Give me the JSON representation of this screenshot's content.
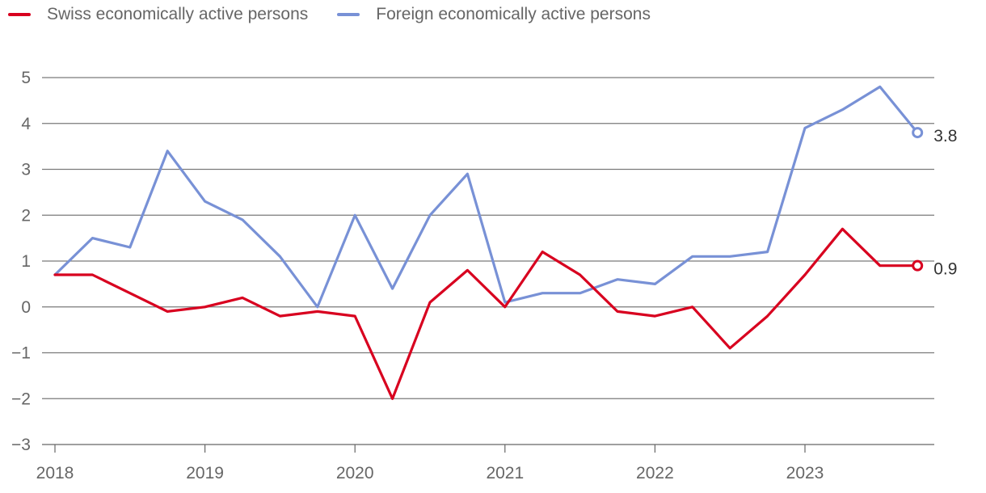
{
  "chart_data": {
    "type": "line",
    "title": "",
    "xlabel": "",
    "ylabel": "",
    "ylim": [
      -3,
      5
    ],
    "yticks": [
      -3,
      -2,
      -1,
      0,
      1,
      2,
      3,
      4,
      5
    ],
    "yticklabels": [
      "−3",
      "−2",
      "−1",
      "0",
      "1",
      "2",
      "3",
      "4",
      "5"
    ],
    "xlim": [
      2018,
      2023.85
    ],
    "xticks": [
      2018,
      2019,
      2020,
      2021,
      2022,
      2023
    ],
    "xticklabels": [
      "2018",
      "2019",
      "2020",
      "2021",
      "2022",
      "2023"
    ],
    "grid": "horizontal",
    "legend_position": "top-left",
    "x": [
      2018.0,
      2018.25,
      2018.5,
      2018.75,
      2019.0,
      2019.25,
      2019.5,
      2019.75,
      2020.0,
      2020.25,
      2020.5,
      2020.75,
      2021.0,
      2021.25,
      2021.5,
      2021.75,
      2022.0,
      2022.25,
      2022.5,
      2022.75,
      2023.0,
      2023.25,
      2023.5,
      2023.75
    ],
    "series": [
      {
        "name": "Swiss economically active persons",
        "color": "#d8001f",
        "values": [
          0.7,
          0.7,
          0.3,
          -0.1,
          0.0,
          0.2,
          -0.2,
          -0.1,
          -0.2,
          -2.0,
          0.1,
          0.8,
          0.0,
          1.2,
          0.7,
          -0.1,
          -0.2,
          0.0,
          -0.9,
          -0.2,
          0.7,
          1.7,
          0.9,
          0.9
        ],
        "end_label": "0.9"
      },
      {
        "name": "Foreign economically active persons",
        "color": "#7891d6",
        "values": [
          0.7,
          1.5,
          1.3,
          3.4,
          2.3,
          1.9,
          1.1,
          0.0,
          2.0,
          0.4,
          2.0,
          2.9,
          0.1,
          0.3,
          0.3,
          0.6,
          0.5,
          1.1,
          1.1,
          1.2,
          3.9,
          4.3,
          4.8,
          3.8
        ],
        "end_label": "3.8"
      }
    ]
  }
}
